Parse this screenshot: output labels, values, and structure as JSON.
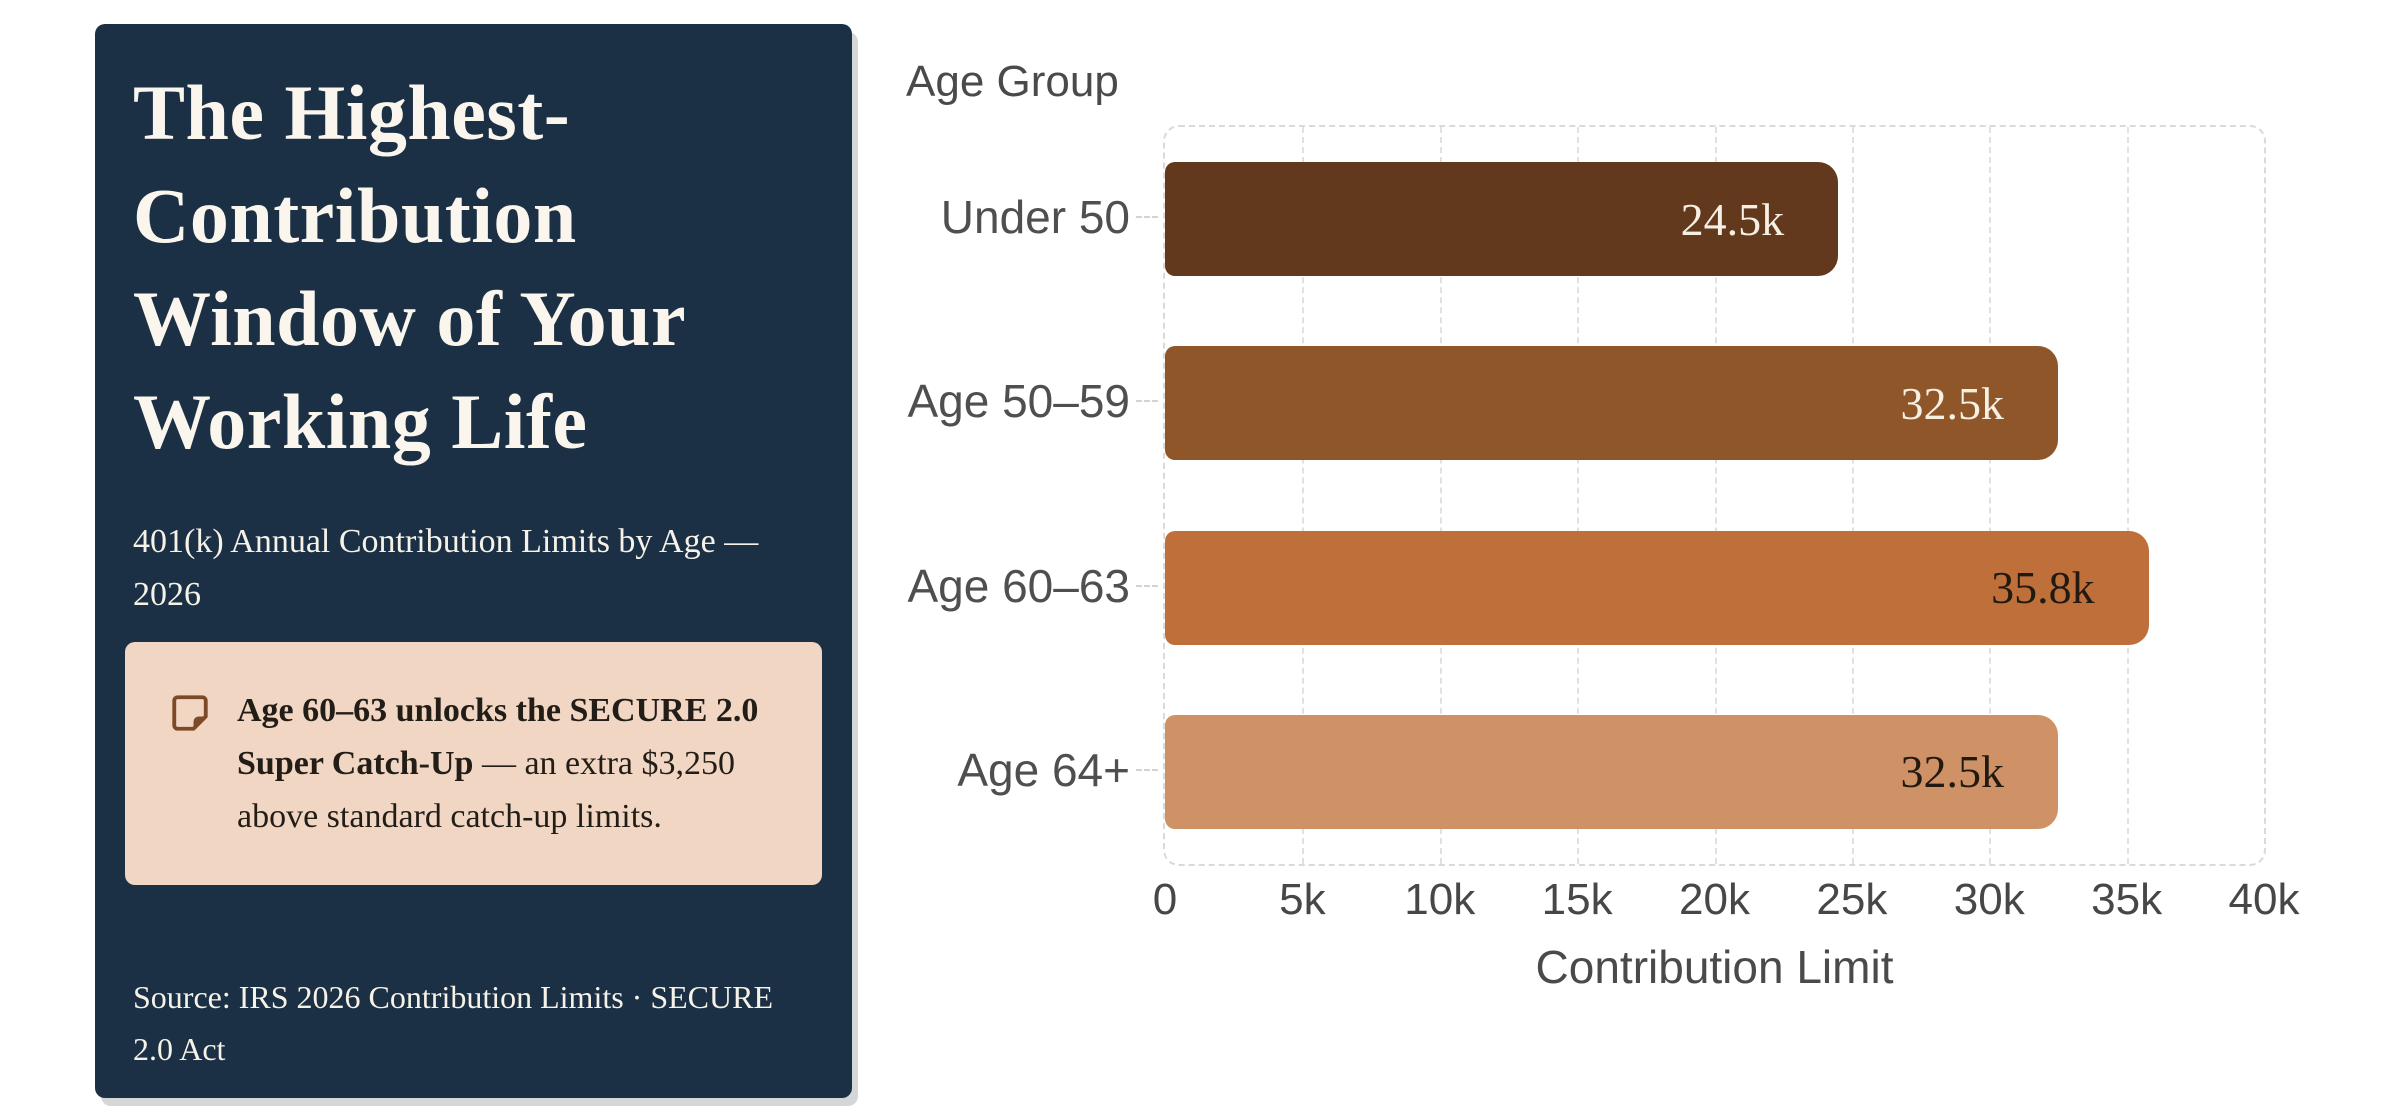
{
  "panel": {
    "title": "The Highest-Contribution Window of Your Working Life",
    "subtitle": "401(k) Annual Contribution Limits by Age — 2026",
    "callout": {
      "icon": "sticky-note-icon",
      "highlight": "Age 60–63 unlocks the SECURE 2.0 Super Catch-Up",
      "rest": " — an extra $3,250 above standard catch-up limits."
    },
    "source": "Source: IRS 2026 Contribution Limits · SECURE 2.0 Act",
    "colors": {
      "background": "#1c3045",
      "text": "#f6f2e8",
      "callout_background": "#f0d6c3",
      "callout_text": "#221d17",
      "icon": "#7c4a26"
    }
  },
  "chart_data": {
    "type": "bar",
    "orientation": "horizontal",
    "ylabel": "Age Group",
    "xlabel": "Contribution Limit",
    "categories": [
      "Under 50",
      "Age 50–59",
      "Age 60–63",
      "Age 64+"
    ],
    "values": [
      24500,
      32500,
      35800,
      32500
    ],
    "value_labels": [
      "24.5k",
      "32.5k",
      "35.8k",
      "32.5k"
    ],
    "bar_colors": [
      "#63391d",
      "#8f5629",
      "#bf703a",
      "#cf9166"
    ],
    "value_label_colors": [
      "#f6efe4",
      "#f6efe4",
      "#221a10",
      "#221a10"
    ],
    "xlim": [
      0,
      40000
    ],
    "xticks": {
      "values": [
        0,
        5000,
        10000,
        15000,
        20000,
        25000,
        30000,
        35000,
        40000
      ],
      "labels": [
        "0",
        "5k",
        "10k",
        "15k",
        "20k",
        "25k",
        "30k",
        "35k",
        "40k"
      ]
    },
    "grid": {
      "vertical_dashed": true,
      "color": "#e4e0dc"
    },
    "legend": null
  }
}
